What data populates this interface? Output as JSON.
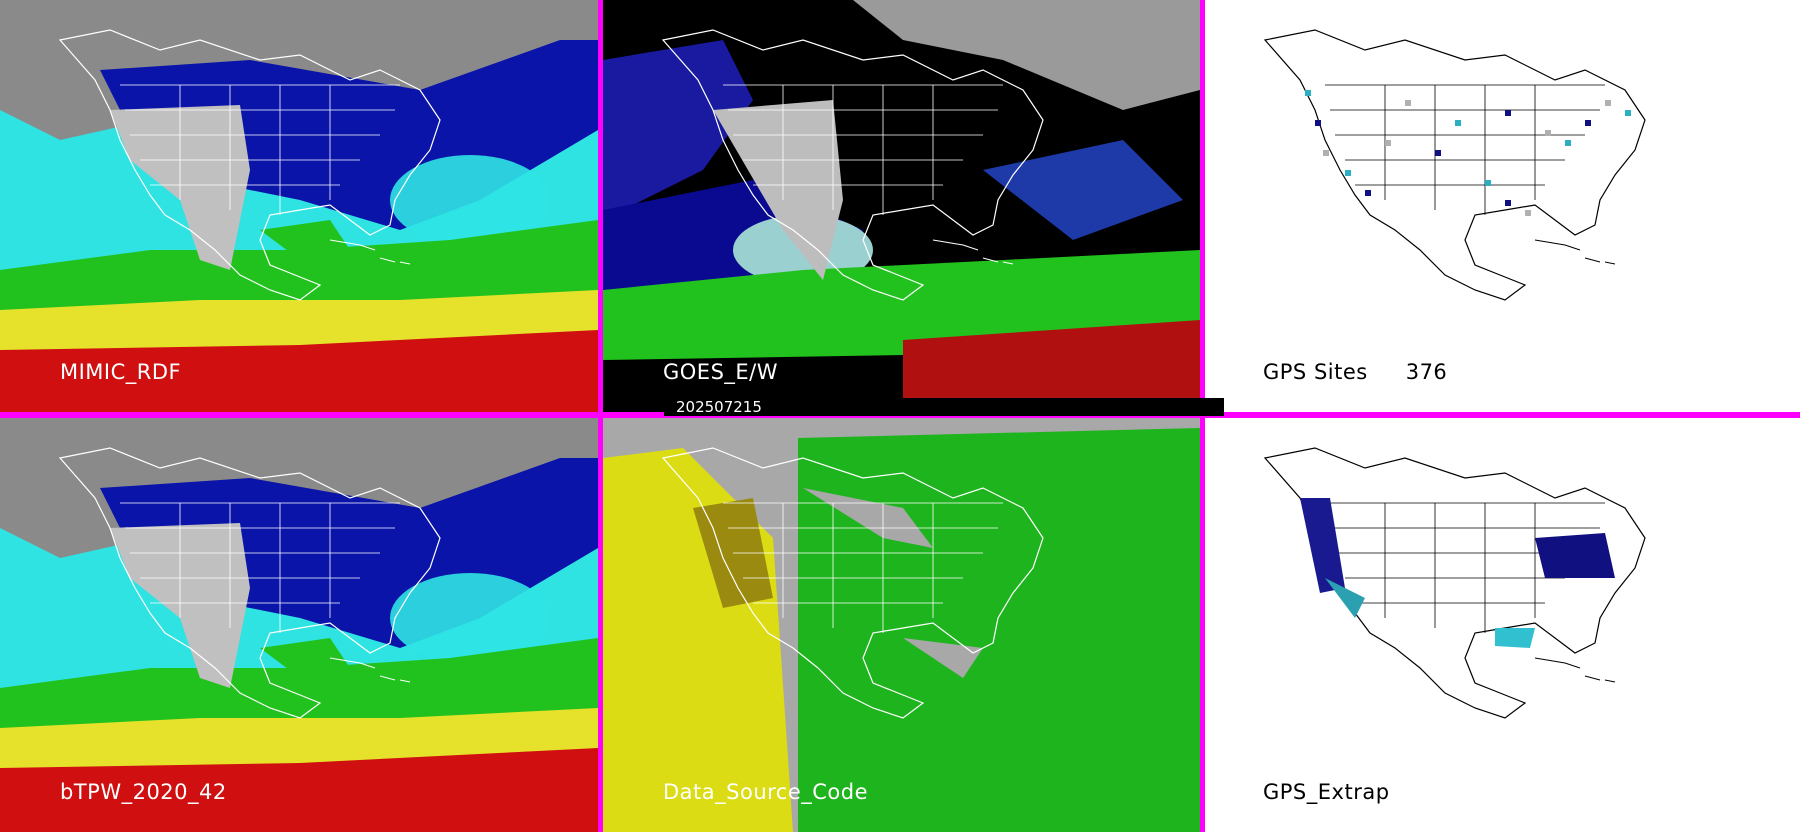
{
  "panels": [
    {
      "label": "MIMIC_RDF",
      "style": "tpw"
    },
    {
      "label": "GOES_E/W",
      "style": "goes"
    },
    {
      "label": "GPS Sites",
      "count": "376",
      "style": "gps"
    },
    {
      "label": "bTPW_2020_42",
      "style": "tpw"
    },
    {
      "label": "Data_Source_Code",
      "style": "source"
    },
    {
      "label": "GPS_Extrap",
      "style": "extrap"
    }
  ],
  "timestamp": "202507215",
  "colors": {
    "frame": "#ff00ff",
    "ocean_cyan": "#2fe3e3",
    "ocean_blue": "#0a14a8",
    "green": "#22c21e",
    "yellow": "#e6e22c",
    "red": "#d01010",
    "grey": "#a8a8a8",
    "source_yellow": "#dcdc14",
    "source_green": "#1eb41e"
  }
}
